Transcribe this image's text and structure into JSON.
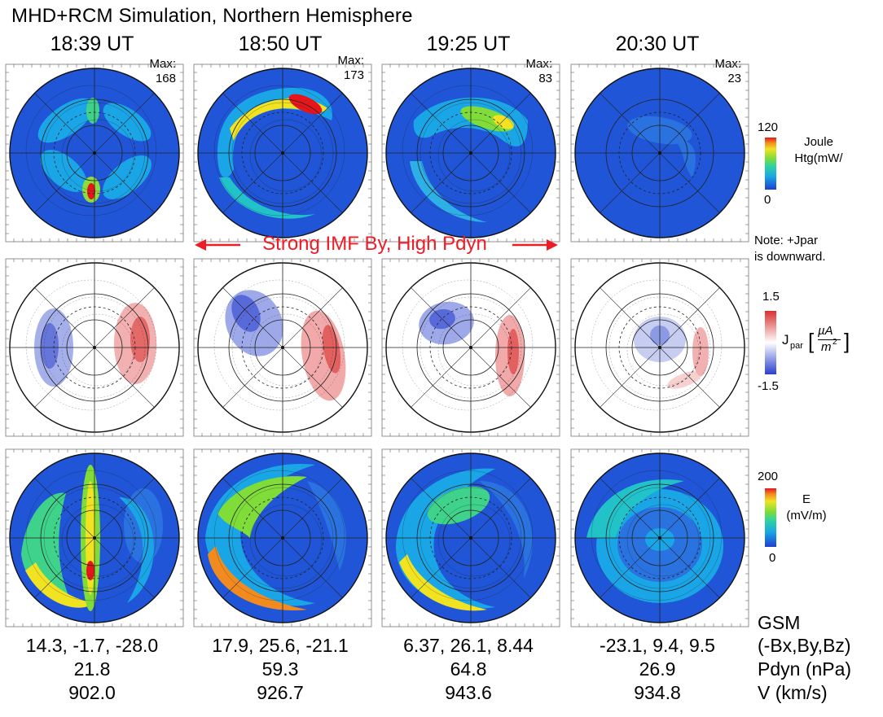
{
  "chart_data": {
    "type": "heatmap",
    "title": "MHD+RCM Simulation,  Northern Hemisphere",
    "columns": [
      {
        "time": "18:39 UT",
        "joule_max": "168",
        "gsm": "14.3, -1.7, -28.0",
        "pdyn": "21.8",
        "v": "902.0"
      },
      {
        "time": "18:50 UT",
        "joule_max": "173",
        "gsm": "17.9, 25.6, -21.1",
        "pdyn": "59.3",
        "v": "926.7"
      },
      {
        "time": "19:25 UT",
        "joule_max": "83",
        "gsm": "6.37, 26.1, 8.44",
        "pdyn": "64.8",
        "v": "943.6"
      },
      {
        "time": "20:30 UT",
        "joule_max": "23",
        "gsm": "-23.1, 9.4, 9.5",
        "pdyn": "26.9",
        "v": "934.8"
      }
    ],
    "max_label": "Max:",
    "rows": [
      {
        "quantity": "Joule heating",
        "colorbar_label": "Joule\nHtg(mW/",
        "range": [
          0,
          120
        ],
        "range_labels": [
          "0",
          "120"
        ],
        "colormap": "rainbow"
      },
      {
        "quantity": "Jpar",
        "colorbar_label": "J_par [µA/m²]",
        "range": [
          -1.5,
          1.5
        ],
        "range_labels": [
          "-1.5",
          "1.5"
        ],
        "colormap": "blue-white-red"
      },
      {
        "quantity": "E",
        "colorbar_label": "E\n(mV/m)",
        "range": [
          0,
          200
        ],
        "range_labels": [
          "0",
          "200"
        ],
        "colormap": "rainbow"
      }
    ],
    "annotation": "Strong IMF By, High Pdyn",
    "note": [
      "Note:  +Jpar",
      "is downward."
    ],
    "jpar_label": {
      "sym": "J",
      "sub": "par",
      "num": "µA",
      "den": "m",
      "exp": "2"
    },
    "bottom_row_labels": {
      "gsm": "GSM",
      "components": "(-Bx,By,Bz)",
      "pdyn": "Pdyn (nPa)",
      "v": "V (km/s)"
    }
  },
  "colors": {
    "background_blue": "#1f55d6",
    "accent_red": "#ee1c25",
    "jpar_neg": "#5b6fd8",
    "jpar_pos": "#e87070"
  }
}
